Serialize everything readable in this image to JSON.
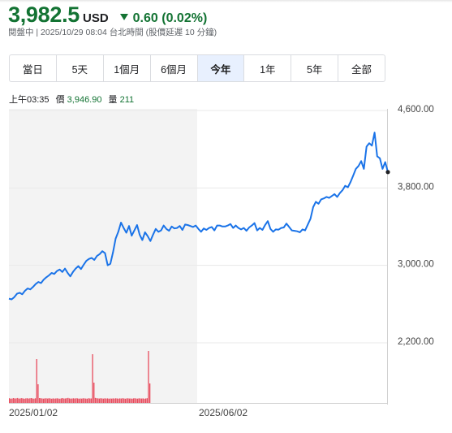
{
  "quote": {
    "price": "3,982.5",
    "currency": "USD",
    "change": "0.60 (0.02%)",
    "status": "閱盤中 | 2025/10/29 08:04 台北時間 (股價延遲 10 分鐘)"
  },
  "tabs": [
    {
      "label": "當日"
    },
    {
      "label": "5天"
    },
    {
      "label": "1個月"
    },
    {
      "label": "6個月"
    },
    {
      "label": "今年",
      "active": true
    },
    {
      "label": "1年"
    },
    {
      "label": "5年"
    },
    {
      "label": "全部"
    }
  ],
  "hover": {
    "time": "上午03:35",
    "price_label": "價",
    "price": "3,946.90",
    "volume_label": "量",
    "volume": "211"
  },
  "colors": {
    "up_green": "#137333",
    "line": "#1a73e8",
    "volume": "#e8495b",
    "shade": "#f3f3f3"
  },
  "chart_data": {
    "type": "line",
    "ylim": [
      2200,
      4600
    ],
    "yticks": [
      "4,600.00",
      "3,800.00",
      "3,000.00",
      "2,200.00"
    ],
    "x_labels": [
      "2025/01/02",
      "2025/06/02"
    ],
    "shaded_range": [
      "2025/01/02",
      "2025/06/02"
    ],
    "series": [
      {
        "values": [
          2640,
          2632,
          2655,
          2690,
          2700,
          2685,
          2720,
          2745,
          2735,
          2760,
          2790,
          2812,
          2800,
          2835,
          2860,
          2880,
          2905,
          2895,
          2925,
          2940,
          2915,
          2950,
          2905,
          2870,
          2915,
          2950,
          2975,
          2945,
          2990,
          3030,
          3050,
          3060,
          3040,
          3080,
          3100,
          3130,
          3110,
          2985,
          3000,
          3120,
          3260,
          3330,
          3425,
          3370,
          3320,
          3390,
          3290,
          3345,
          3400,
          3300,
          3245,
          3325,
          3285,
          3235,
          3300,
          3360,
          3330,
          3345,
          3395,
          3360,
          3340,
          3385,
          3365,
          3370,
          3390,
          3350,
          3405,
          3400,
          3390,
          3380,
          3395,
          3360,
          3330,
          3365,
          3350,
          3370,
          3380,
          3345,
          3395,
          3395,
          3385,
          3385,
          3395,
          3410,
          3370,
          3395,
          3370,
          3355,
          3370,
          3340,
          3375,
          3395,
          3420,
          3345,
          3370,
          3350,
          3400,
          3440,
          3360,
          3330,
          3355,
          3352,
          3370,
          3375,
          3415,
          3380,
          3345,
          3340,
          3335,
          3325,
          3355,
          3345,
          3405,
          3465,
          3585,
          3640,
          3620,
          3665,
          3675,
          3690,
          3680,
          3700,
          3720,
          3690,
          3730,
          3760,
          3805,
          3790,
          3845,
          3910,
          3980,
          4010,
          4060,
          3980,
          4210,
          4245,
          4220,
          4355,
          4110,
          4090,
          3980,
          4050,
          3946.9
        ]
      }
    ],
    "volume": [
      58,
      52,
      55,
      60,
      54,
      57,
      61,
      53,
      56,
      59,
      55,
      52,
      56,
      58,
      54,
      57,
      60,
      55,
      53,
      57,
      540,
      230,
      60,
      58,
      55,
      53,
      56,
      57,
      54,
      58,
      55,
      52,
      56,
      53,
      55,
      57,
      54,
      52,
      56,
      60,
      54,
      55,
      58,
      62,
      56,
      53,
      55,
      57,
      54,
      58,
      56,
      52,
      55,
      53,
      57,
      56,
      54,
      52,
      58,
      55,
      55,
      600,
      250,
      62,
      58,
      56,
      54,
      58,
      55,
      53,
      57,
      54,
      56,
      52,
      55,
      53,
      56,
      54,
      57,
      55,
      53,
      56,
      54,
      58,
      55,
      52,
      56,
      57,
      54,
      55,
      52,
      56,
      58,
      54,
      53,
      57,
      55,
      54,
      56,
      52,
      55,
      58,
      640,
      240,
      0,
      0,
      0,
      0,
      0,
      0,
      0,
      0,
      0,
      0,
      0,
      0,
      0,
      0,
      0,
      0,
      0,
      0,
      0,
      0,
      0,
      0,
      0,
      0,
      0,
      0,
      0,
      0,
      0,
      0,
      0,
      0,
      0,
      0,
      0,
      0,
      0,
      0,
      0,
      0,
      0,
      0,
      0,
      0,
      0,
      0,
      0,
      0,
      0,
      0,
      0,
      0,
      0,
      0,
      0,
      0,
      0,
      0,
      0,
      0,
      0,
      0,
      0,
      0,
      0,
      0,
      0,
      0,
      0,
      0,
      0,
      0,
      0,
      0,
      0,
      0,
      0,
      0,
      0,
      0,
      0,
      0,
      0,
      0,
      0,
      0,
      0,
      0,
      0,
      0,
      0,
      0,
      0,
      0,
      0,
      0,
      0,
      0,
      0,
      0,
      0,
      0,
      0,
      0,
      0,
      0,
      0,
      0,
      0,
      0,
      0,
      0,
      0,
      0,
      0,
      0,
      0,
      0,
      0,
      0,
      0,
      0,
      0,
      0,
      0,
      0,
      0,
      0,
      0,
      0,
      0,
      0,
      0,
      0,
      0,
      0,
      0,
      0,
      0,
      0,
      0,
      0,
      0,
      0,
      0,
      0,
      0,
      0,
      0,
      0,
      0,
      0,
      0,
      0,
      0,
      0,
      0,
      0,
      0,
      0,
      0,
      0,
      0,
      0,
      0,
      0,
      0,
      0,
      0,
      0,
      0,
      0,
      0,
      0
    ]
  }
}
